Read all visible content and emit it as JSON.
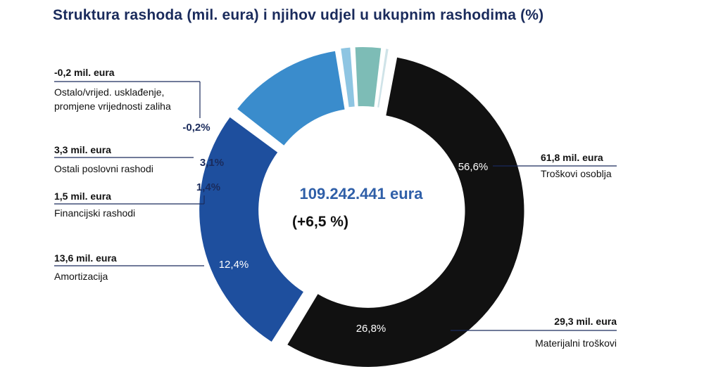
{
  "chart_data": {
    "type": "pie",
    "title": "Struktura rashoda (mil. eura) i njihov udjel u ukupnim rashodima (%)",
    "center_total": "109.242.441 eura",
    "center_change": "(+6,5 %)",
    "slices": [
      {
        "name": "Troškovi osoblja",
        "value": 61.8,
        "value_label": "61,8 mil. eura",
        "percent": 56.6,
        "percent_label": "56,6%",
        "color": "#111111",
        "label_color": "#ffffff"
      },
      {
        "name": "Materijalni troškovi",
        "value": 29.3,
        "value_label": "29,3 mil. eura",
        "percent": 26.8,
        "percent_label": "26,8%",
        "color": "#1e4f9e",
        "label_color": "#ffffff"
      },
      {
        "name": "Amortizacija",
        "value": 13.6,
        "value_label": "13,6 mil. eura",
        "percent": 12.4,
        "percent_label": "12,4%",
        "color": "#3a8ccc",
        "label_color": "#ffffff"
      },
      {
        "name": "Financijski rashodi",
        "value": 1.5,
        "value_label": "1,5 mil. eura",
        "percent": 1.4,
        "percent_label": "1,4%",
        "color": "#8ec5e2",
        "label_color": "#1a2b5c"
      },
      {
        "name": "Ostali poslovni rashodi",
        "value": 3.3,
        "value_label": "3,3 mil. eura",
        "percent": 3.1,
        "percent_label": "3,1%",
        "color": "#7dbcb6",
        "label_color": "#1a2b5c"
      },
      {
        "name": "Ostalo/vrijed. usklađenje, promjene vrijednosti zaliha",
        "value": -0.2,
        "value_label": "-0,2 mil. eura",
        "percent": -0.2,
        "percent_label": "-0,2%",
        "color": "#cfe3e8",
        "label_color": "#1a2b5c"
      }
    ],
    "colors": {
      "title": "#1a2b5c",
      "center_total": "#2f5fa8",
      "leader_line": "#1a2b5c"
    }
  }
}
